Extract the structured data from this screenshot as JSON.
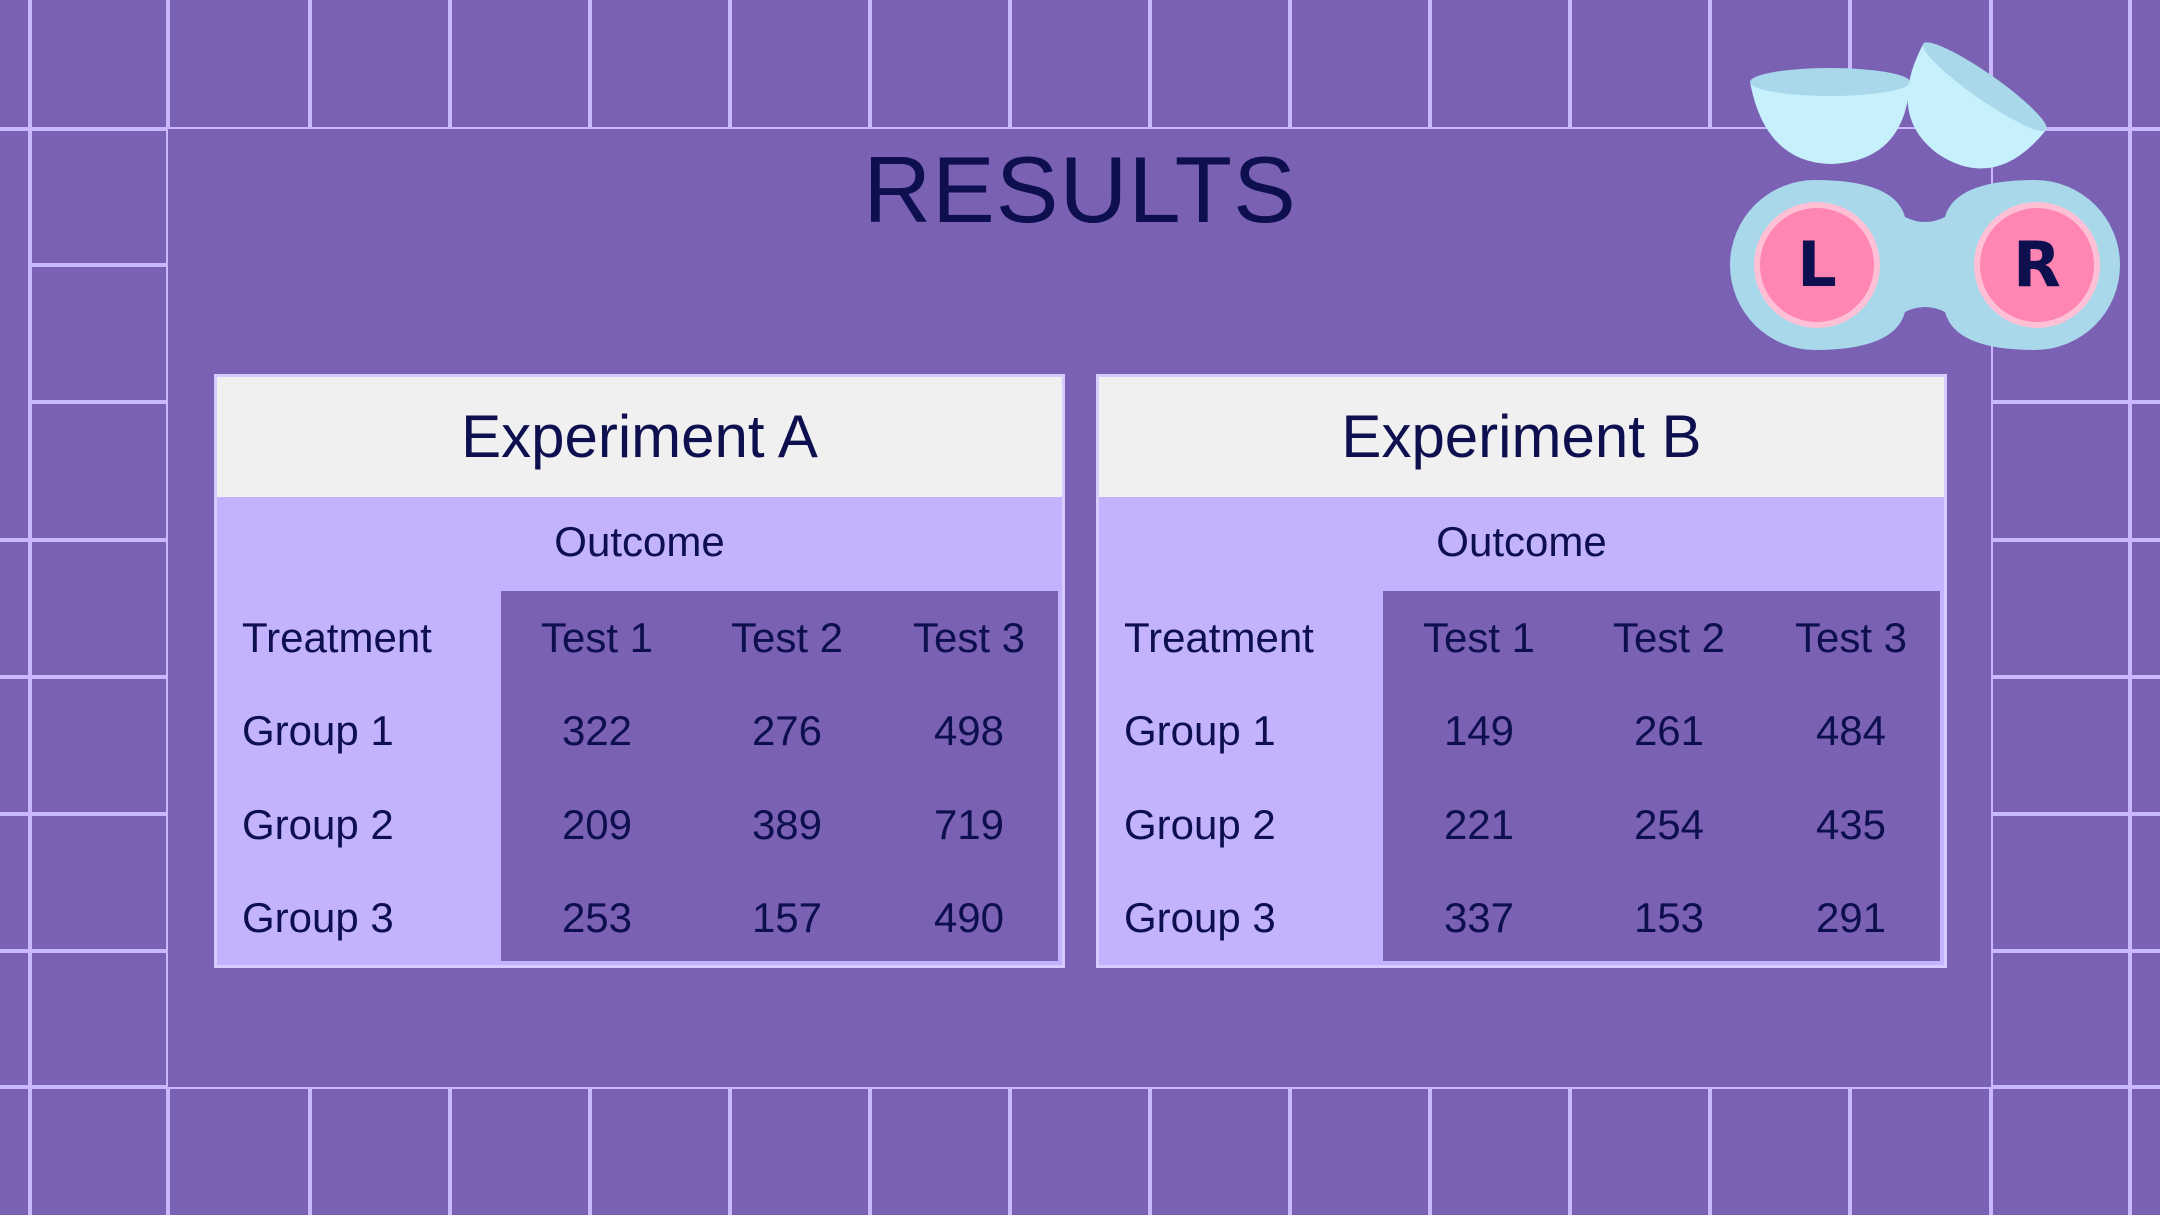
{
  "slide": {
    "title": "RESULTS",
    "lens_case": {
      "left_label": "L",
      "right_label": "R"
    },
    "colors": {
      "background": "#7a61b4",
      "grid_line": "#c9b8ff",
      "title_text": "#0d0f4f",
      "table_header_bg": "#f0f0f0",
      "table_light": "#c3b2fe",
      "table_dark": "#7a61b4",
      "lens_case_blue": "#a8d8ea",
      "lens_pink": "#ff85b3"
    }
  },
  "tables": [
    {
      "title": "Experiment A",
      "subheader": "Outcome",
      "row_header": "Treatment",
      "columns": [
        "Test 1",
        "Test 2",
        "Test 3"
      ],
      "rows": [
        {
          "label": "Group 1",
          "values": [
            "322",
            "276",
            "498"
          ]
        },
        {
          "label": "Group 2",
          "values": [
            "209",
            "389",
            "719"
          ]
        },
        {
          "label": "Group 3",
          "values": [
            "253",
            "157",
            "490"
          ]
        }
      ]
    },
    {
      "title": "Experiment B",
      "subheader": "Outcome",
      "row_header": "Treatment",
      "columns": [
        "Test 1",
        "Test 2",
        "Test 3"
      ],
      "rows": [
        {
          "label": "Group 1",
          "values": [
            "149",
            "261",
            "484"
          ]
        },
        {
          "label": "Group 2",
          "values": [
            "221",
            "254",
            "435"
          ]
        },
        {
          "label": "Group 3",
          "values": [
            "337",
            "153",
            "291"
          ]
        }
      ]
    }
  ]
}
